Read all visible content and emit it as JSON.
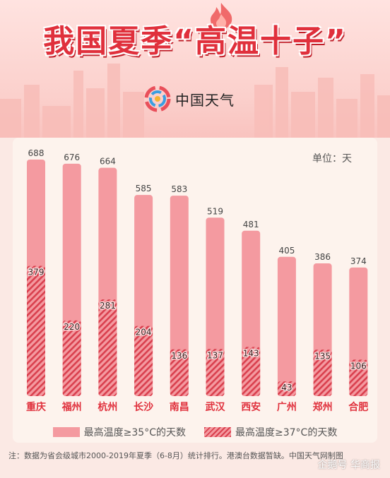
{
  "header": {
    "title": "我国夏季“高温十子”",
    "brand": "中国天气"
  },
  "unit_label": "单位：天",
  "legend": {
    "item_35": "最高温度≥35°C的天数",
    "item_37": "最高温度≥37°C的天数"
  },
  "footer": {
    "note": "注：数据为省会级城市2000-2019年夏季（6-8月）统计排行。港澳台数据暂缺。中国天气网制图",
    "watermark": "企鹅号 华商报"
  },
  "colors": {
    "bar_35": "#f49aa0",
    "bar_37_stripe": "#d9404e",
    "title": "#e0303c"
  },
  "chart_data": {
    "type": "bar",
    "categories": [
      "重庆",
      "福州",
      "杭州",
      "长沙",
      "南昌",
      "武汉",
      "西安",
      "广州",
      "郑州",
      "合肥"
    ],
    "series": [
      {
        "name": "最高温度≥35°C的天数",
        "values": [
          688,
          676,
          664,
          585,
          583,
          519,
          481,
          405,
          386,
          374
        ]
      },
      {
        "name": "最高温度≥37°C的天数",
        "values": [
          379,
          220,
          281,
          204,
          136,
          137,
          143,
          43,
          135,
          106
        ]
      }
    ],
    "ylim": [
      0,
      700
    ],
    "grid": false,
    "legend_position": "bottom"
  }
}
